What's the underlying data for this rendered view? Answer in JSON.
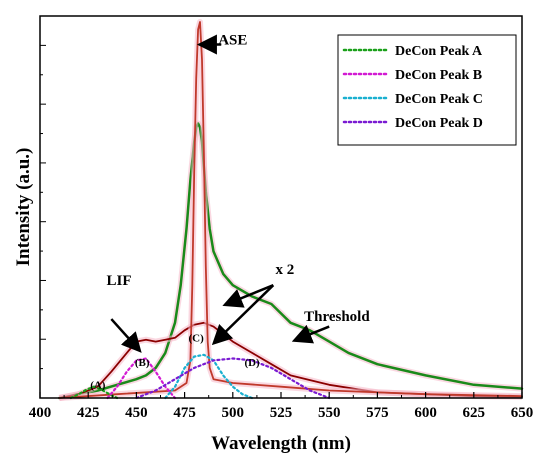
{
  "chart_data": {
    "type": "line",
    "xlabel": "Wavelength (nm)",
    "ylabel": "Intensity (a.u.)",
    "xlim": [
      400,
      650
    ],
    "ylim": [
      0,
      1
    ],
    "x_ticks": [
      "400",
      "425",
      "450",
      "475",
      "500",
      "525",
      "550",
      "575",
      "600",
      "625",
      "650"
    ],
    "legend_position": "top-right",
    "series": [
      {
        "name": "",
        "color": "#1a8a1a",
        "style": "solid",
        "x": [
          410,
          420,
          430,
          440,
          450,
          455,
          460,
          465,
          470,
          473,
          476,
          478,
          480,
          481,
          482,
          483,
          484,
          486,
          488,
          490,
          495,
          500,
          510,
          520,
          530,
          540,
          550,
          560,
          575,
          600,
          625,
          650
        ],
        "y": [
          0.0,
          0.01,
          0.02,
          0.035,
          0.05,
          0.06,
          0.08,
          0.12,
          0.2,
          0.3,
          0.45,
          0.58,
          0.68,
          0.72,
          0.73,
          0.72,
          0.68,
          0.55,
          0.45,
          0.39,
          0.33,
          0.3,
          0.27,
          0.25,
          0.2,
          0.18,
          0.15,
          0.12,
          0.09,
          0.06,
          0.035,
          0.025
        ]
      },
      {
        "name": "",
        "color": "#8b0000",
        "style": "solid",
        "x": [
          410,
          420,
          430,
          437,
          445,
          450,
          455,
          460,
          465,
          470,
          475,
          480,
          485,
          490,
          495,
          500,
          510,
          520,
          530,
          550,
          575,
          600,
          625,
          650
        ],
        "y": [
          0.0,
          0.01,
          0.03,
          0.07,
          0.12,
          0.15,
          0.155,
          0.15,
          0.155,
          0.16,
          0.18,
          0.195,
          0.2,
          0.19,
          0.17,
          0.15,
          0.12,
          0.09,
          0.06,
          0.035,
          0.015,
          0.01,
          0.005,
          0.003
        ]
      },
      {
        "name": "",
        "color": "#c0392b",
        "style": "solid",
        "x": [
          410,
          440,
          470,
          476,
          478,
          479,
          480,
          481,
          482,
          483,
          484,
          485,
          486,
          487,
          488,
          490,
          500,
          525,
          550,
          600,
          650
        ],
        "y": [
          0.0,
          0.01,
          0.02,
          0.04,
          0.1,
          0.3,
          0.6,
          0.85,
          0.98,
          1.0,
          0.9,
          0.65,
          0.35,
          0.15,
          0.08,
          0.05,
          0.04,
          0.03,
          0.02,
          0.01,
          0.005
        ]
      },
      {
        "name": "DeCon Peak A",
        "color": "#1aa01a",
        "style": "dotted",
        "x": [
          416,
          420,
          424,
          428,
          432,
          436,
          440
        ],
        "y": [
          0.0,
          0.01,
          0.022,
          0.03,
          0.022,
          0.01,
          0.0
        ]
      },
      {
        "name": "DeCon Peak B",
        "color": "#d21ad2",
        "style": "dotted",
        "x": [
          435,
          440,
          445,
          450,
          455,
          460,
          465,
          470
        ],
        "y": [
          0.0,
          0.03,
          0.07,
          0.1,
          0.105,
          0.07,
          0.03,
          0.0
        ]
      },
      {
        "name": "DeCon Peak C",
        "color": "#1ab0d0",
        "style": "dotted",
        "x": [
          465,
          470,
          475,
          480,
          485,
          490,
          495,
          500,
          505,
          510
        ],
        "y": [
          0.0,
          0.03,
          0.08,
          0.11,
          0.115,
          0.1,
          0.06,
          0.03,
          0.01,
          0.0
        ]
      },
      {
        "name": "DeCon Peak D",
        "color": "#7a1ad2",
        "style": "dotted",
        "x": [
          450,
          460,
          470,
          480,
          490,
          500,
          510,
          520,
          530,
          540,
          550
        ],
        "y": [
          0.0,
          0.02,
          0.05,
          0.08,
          0.1,
          0.105,
          0.1,
          0.08,
          0.05,
          0.02,
          0.0
        ]
      }
    ],
    "annotations": [
      {
        "text": "ASE",
        "x": 500,
        "y": 0.94,
        "arrow_from": [
          494,
          0.94
        ],
        "arrow_to": [
          484,
          0.94
        ]
      },
      {
        "text": "LIF",
        "x": 441,
        "y": 0.3,
        "arrow_from": [
          437,
          0.21
        ],
        "arrow_to": [
          451,
          0.13
        ]
      },
      {
        "text": "x 2",
        "x": 527,
        "y": 0.33,
        "arrows": [
          {
            "from": [
              521,
              0.3
            ],
            "to": [
              497,
              0.25
            ]
          },
          {
            "from": [
              521,
              0.3
            ],
            "to": [
              491,
              0.15
            ]
          }
        ]
      },
      {
        "text": "Threshold",
        "x": 554,
        "y": 0.205,
        "arrow_from": [
          550,
          0.19
        ],
        "arrow_to": [
          533,
          0.155
        ]
      },
      {
        "text": "(A)",
        "x": 430,
        "y": 0.025
      },
      {
        "text": "(B)",
        "x": 453,
        "y": 0.085
      },
      {
        "text": "(C)",
        "x": 481,
        "y": 0.15
      },
      {
        "text": "(D)",
        "x": 510,
        "y": 0.085
      }
    ]
  }
}
